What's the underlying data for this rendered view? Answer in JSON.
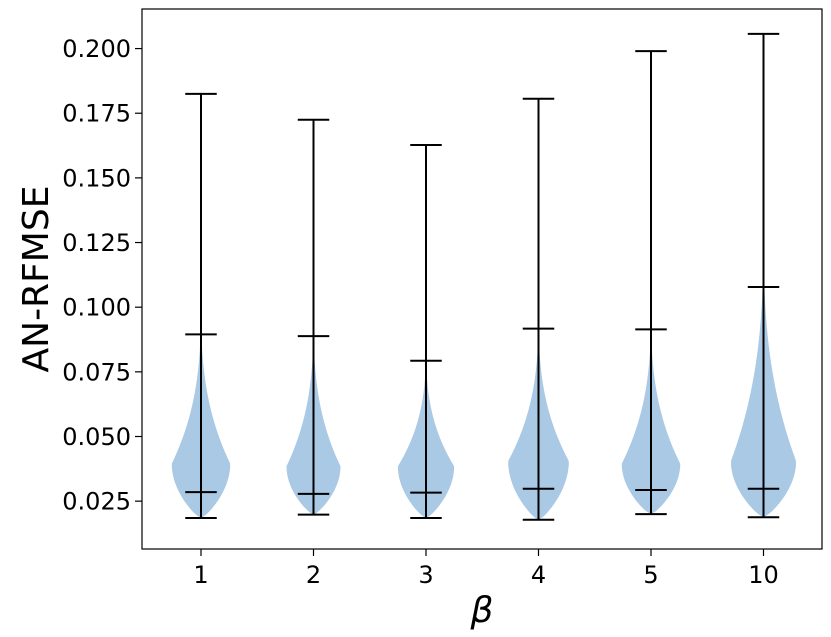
{
  "chart_data": {
    "type": "violin",
    "title": "",
    "xlabel": "β",
    "ylabel": "AN-RFMSE",
    "categories": [
      "1",
      "2",
      "3",
      "4",
      "5",
      "10"
    ],
    "ylim": [
      0.0065,
      0.2153
    ],
    "yticks": [
      "0.025",
      "0.050",
      "0.075",
      "0.100",
      "0.125",
      "0.150",
      "0.175",
      "0.200"
    ],
    "grid": false,
    "color": "#a4c6e3",
    "line_color": "#000000",
    "series": [
      {
        "category": "1",
        "min": 0.0185,
        "p5": 0.0285,
        "p95": 0.0895,
        "max": 0.1825,
        "mode": 0.0395,
        "density_top": 0.098,
        "half_width": 0.26
      },
      {
        "category": "2",
        "min": 0.0198,
        "p5": 0.0278,
        "p95": 0.0888,
        "max": 0.1725,
        "mode": 0.0385,
        "density_top": 0.093,
        "half_width": 0.24
      },
      {
        "category": "3",
        "min": 0.0185,
        "p5": 0.0283,
        "p95": 0.0793,
        "max": 0.1627,
        "mode": 0.0385,
        "density_top": 0.083,
        "half_width": 0.25
      },
      {
        "category": "4",
        "min": 0.0178,
        "p5": 0.0298,
        "p95": 0.0917,
        "max": 0.1806,
        "mode": 0.0405,
        "density_top": 0.095,
        "half_width": 0.27
      },
      {
        "category": "5",
        "min": 0.02,
        "p5": 0.0293,
        "p95": 0.0914,
        "max": 0.199,
        "mode": 0.0395,
        "density_top": 0.096,
        "half_width": 0.26
      },
      {
        "category": "10",
        "min": 0.0188,
        "p5": 0.0298,
        "p95": 0.1078,
        "max": 0.2057,
        "mode": 0.0405,
        "density_top": 0.125,
        "half_width": 0.29
      }
    ]
  }
}
